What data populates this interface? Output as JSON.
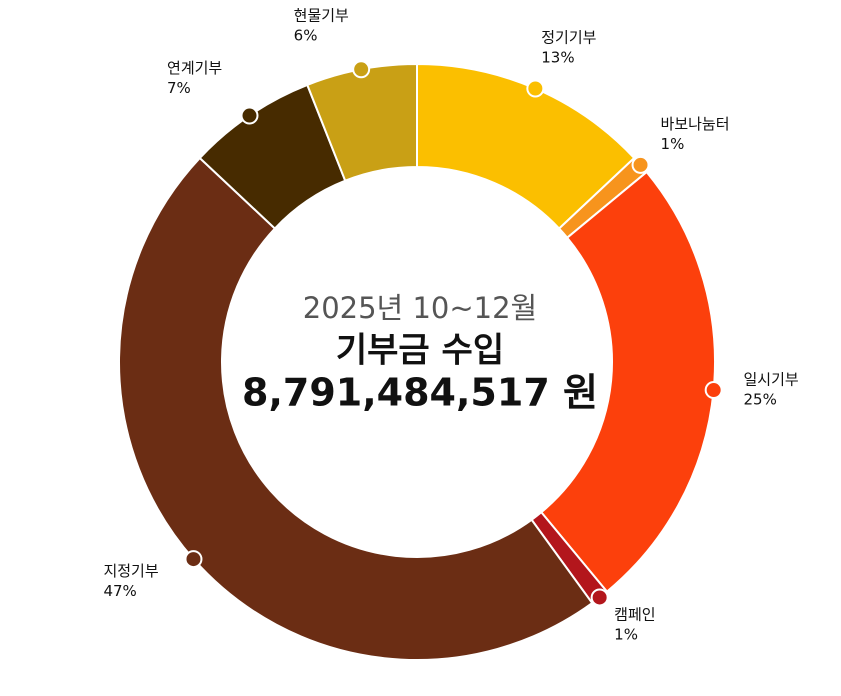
{
  "chart_data": {
    "type": "donut",
    "subtitle": "2025년 10~12월",
    "title": "기부금 수입",
    "total_label": "8,791,484,517 원",
    "categories": [
      "정기기부",
      "바보나눔터",
      "일시기부",
      "캠페인",
      "지정기부",
      "연계기부",
      "현물기부"
    ],
    "values": [
      13,
      1,
      25,
      1,
      47,
      7,
      6
    ],
    "value_labels": [
      "13%",
      "1%",
      "25%",
      "1%",
      "47%",
      "7%",
      "6%"
    ],
    "colors": [
      "#fbbf00",
      "#f7941d",
      "#fc400c",
      "#b3161c",
      "#6b2d14",
      "#472b00",
      "#c9a015"
    ]
  }
}
